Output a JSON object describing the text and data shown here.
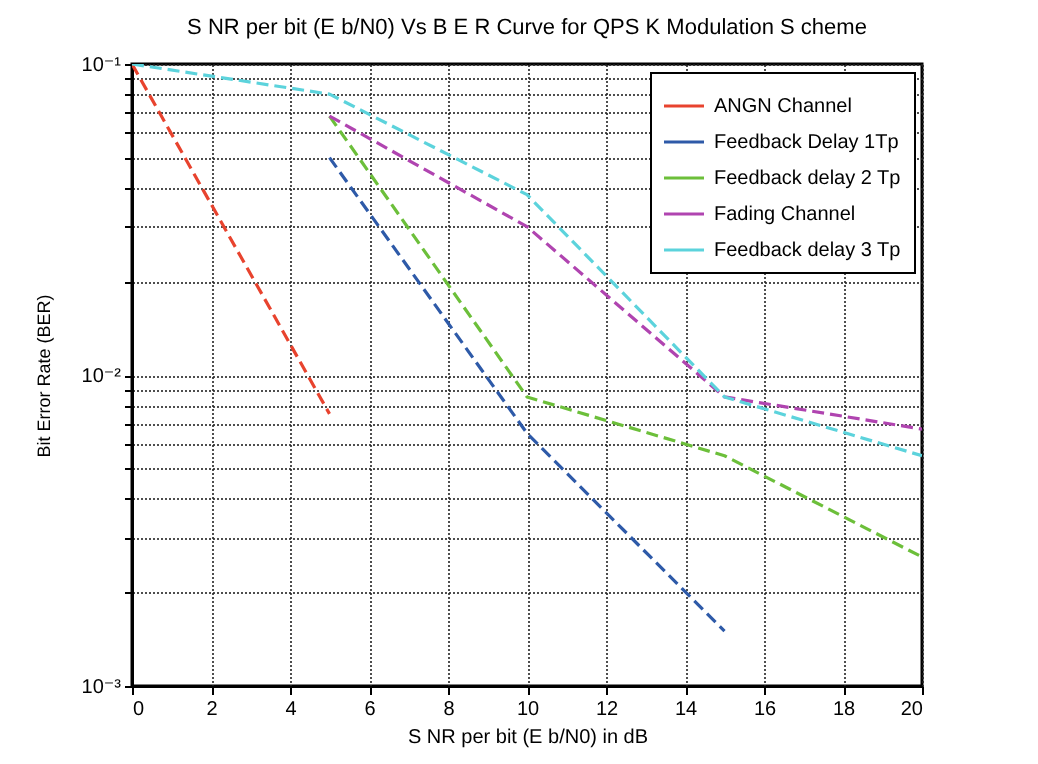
{
  "chart_data": {
    "type": "line",
    "title": "S NR per bit (E b/N0) Vs B E R Curve for QPS K Modulation S cheme",
    "xlabel": "S NR per bit (E b/N0) in dB",
    "ylabel": "Bit Error Rate (BER)",
    "log": "y",
    "grid": true,
    "legend": "top right",
    "line_style": "dashed",
    "marker": "none",
    "xlim": [
      0,
      20
    ],
    "xticks": [
      0,
      2,
      4,
      6,
      8,
      10,
      12,
      14,
      16,
      18,
      20
    ],
    "ylim": [
      0.001,
      0.1
    ],
    "yticks": [
      {
        "value": 0.001,
        "label": "10⁻³"
      },
      {
        "value": 0.002,
        "label": null
      },
      {
        "value": 0.003,
        "label": null
      },
      {
        "value": 0.004,
        "label": null
      },
      {
        "value": 0.005,
        "label": null
      },
      {
        "value": 0.006,
        "label": null
      },
      {
        "value": 0.007,
        "label": null
      },
      {
        "value": 0.008,
        "label": null
      },
      {
        "value": 0.009,
        "label": null
      },
      {
        "value": 0.01,
        "label": "10⁻²"
      },
      {
        "value": 0.02,
        "label": null
      },
      {
        "value": 0.03,
        "label": null
      },
      {
        "value": 0.04,
        "label": null
      },
      {
        "value": 0.05,
        "label": null
      },
      {
        "value": 0.06,
        "label": null
      },
      {
        "value": 0.07,
        "label": null
      },
      {
        "value": 0.08,
        "label": null
      },
      {
        "value": 0.09,
        "label": null
      },
      {
        "value": 0.1,
        "label": "10⁻¹"
      }
    ],
    "series": [
      {
        "name": "ANGN Channel",
        "color": "#e8432e",
        "x": [
          0,
          5
        ],
        "values": [
          0.1,
          0.0075
        ]
      },
      {
        "name": "Feedback Delay 1Tp",
        "color": "#2e5aa8",
        "x": [
          5,
          10,
          15
        ],
        "values": [
          0.05,
          0.0065,
          0.0015
        ]
      },
      {
        "name": "Feedback delay 2 Tp",
        "color": "#6cbf3a",
        "x": [
          5,
          10,
          15,
          20
        ],
        "values": [
          0.068,
          0.0085,
          0.0055,
          0.0026
        ]
      },
      {
        "name": "Fading Channel",
        "color": "#b044b0",
        "x": [
          5,
          10,
          15,
          20
        ],
        "values": [
          0.068,
          0.03,
          0.0085,
          0.0067
        ]
      },
      {
        "name": "Feedback delay 3 Tp",
        "color": "#5cd3dc",
        "x": [
          0,
          5,
          10,
          15,
          20
        ],
        "values": [
          0.1,
          0.08,
          0.038,
          0.0085,
          0.0055
        ]
      }
    ]
  }
}
